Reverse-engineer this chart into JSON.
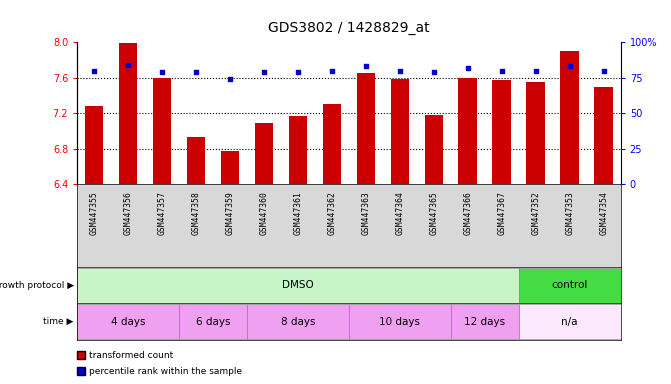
{
  "title": "GDS3802 / 1428829_at",
  "samples": [
    "GSM447355",
    "GSM447356",
    "GSM447357",
    "GSM447358",
    "GSM447359",
    "GSM447360",
    "GSM447361",
    "GSM447362",
    "GSM447363",
    "GSM447364",
    "GSM447365",
    "GSM447366",
    "GSM447367",
    "GSM447352",
    "GSM447353",
    "GSM447354"
  ],
  "transformed_count": [
    7.28,
    7.99,
    7.6,
    6.93,
    6.77,
    7.09,
    7.17,
    7.3,
    7.65,
    7.59,
    7.18,
    7.6,
    7.57,
    7.55,
    7.9,
    7.5
  ],
  "percentile_rank": [
    80,
    84,
    79,
    79,
    74,
    79,
    79,
    80,
    83,
    80,
    79,
    82,
    80,
    80,
    83,
    80
  ],
  "ylim_left": [
    6.4,
    8.0
  ],
  "ylim_right": [
    0,
    100
  ],
  "yticks_left": [
    6.4,
    6.8,
    7.2,
    7.6,
    8.0
  ],
  "yticks_right": [
    0,
    25,
    50,
    75,
    100
  ],
  "ytick_labels_right": [
    "0",
    "25",
    "50",
    "75",
    "100%"
  ],
  "bar_color": "#cc0000",
  "dot_color": "#0000cc",
  "label_bg": "#d8d8d8",
  "groups": {
    "growth_protocol": [
      {
        "label": "DMSO",
        "start": 0,
        "end": 12,
        "color": "#c8f5c8"
      },
      {
        "label": "control",
        "start": 13,
        "end": 15,
        "color": "#44dd44"
      }
    ],
    "time": [
      {
        "label": "4 days",
        "start": 0,
        "end": 2,
        "color": "#f0a0f0"
      },
      {
        "label": "6 days",
        "start": 3,
        "end": 4,
        "color": "#f0a0f0"
      },
      {
        "label": "8 days",
        "start": 5,
        "end": 7,
        "color": "#f0a0f0"
      },
      {
        "label": "10 days",
        "start": 8,
        "end": 10,
        "color": "#f0a0f0"
      },
      {
        "label": "12 days",
        "start": 11,
        "end": 12,
        "color": "#f0a0f0"
      },
      {
        "label": "n/a",
        "start": 13,
        "end": 15,
        "color": "#fce8fc"
      }
    ]
  },
  "legend_items": [
    {
      "label": "transformed count",
      "color": "#cc0000"
    },
    {
      "label": "percentile rank within the sample",
      "color": "#0000cc"
    }
  ],
  "grid_dotted_at": [
    6.8,
    7.2,
    7.6
  ],
  "figsize": [
    6.71,
    3.84
  ],
  "dpi": 100
}
